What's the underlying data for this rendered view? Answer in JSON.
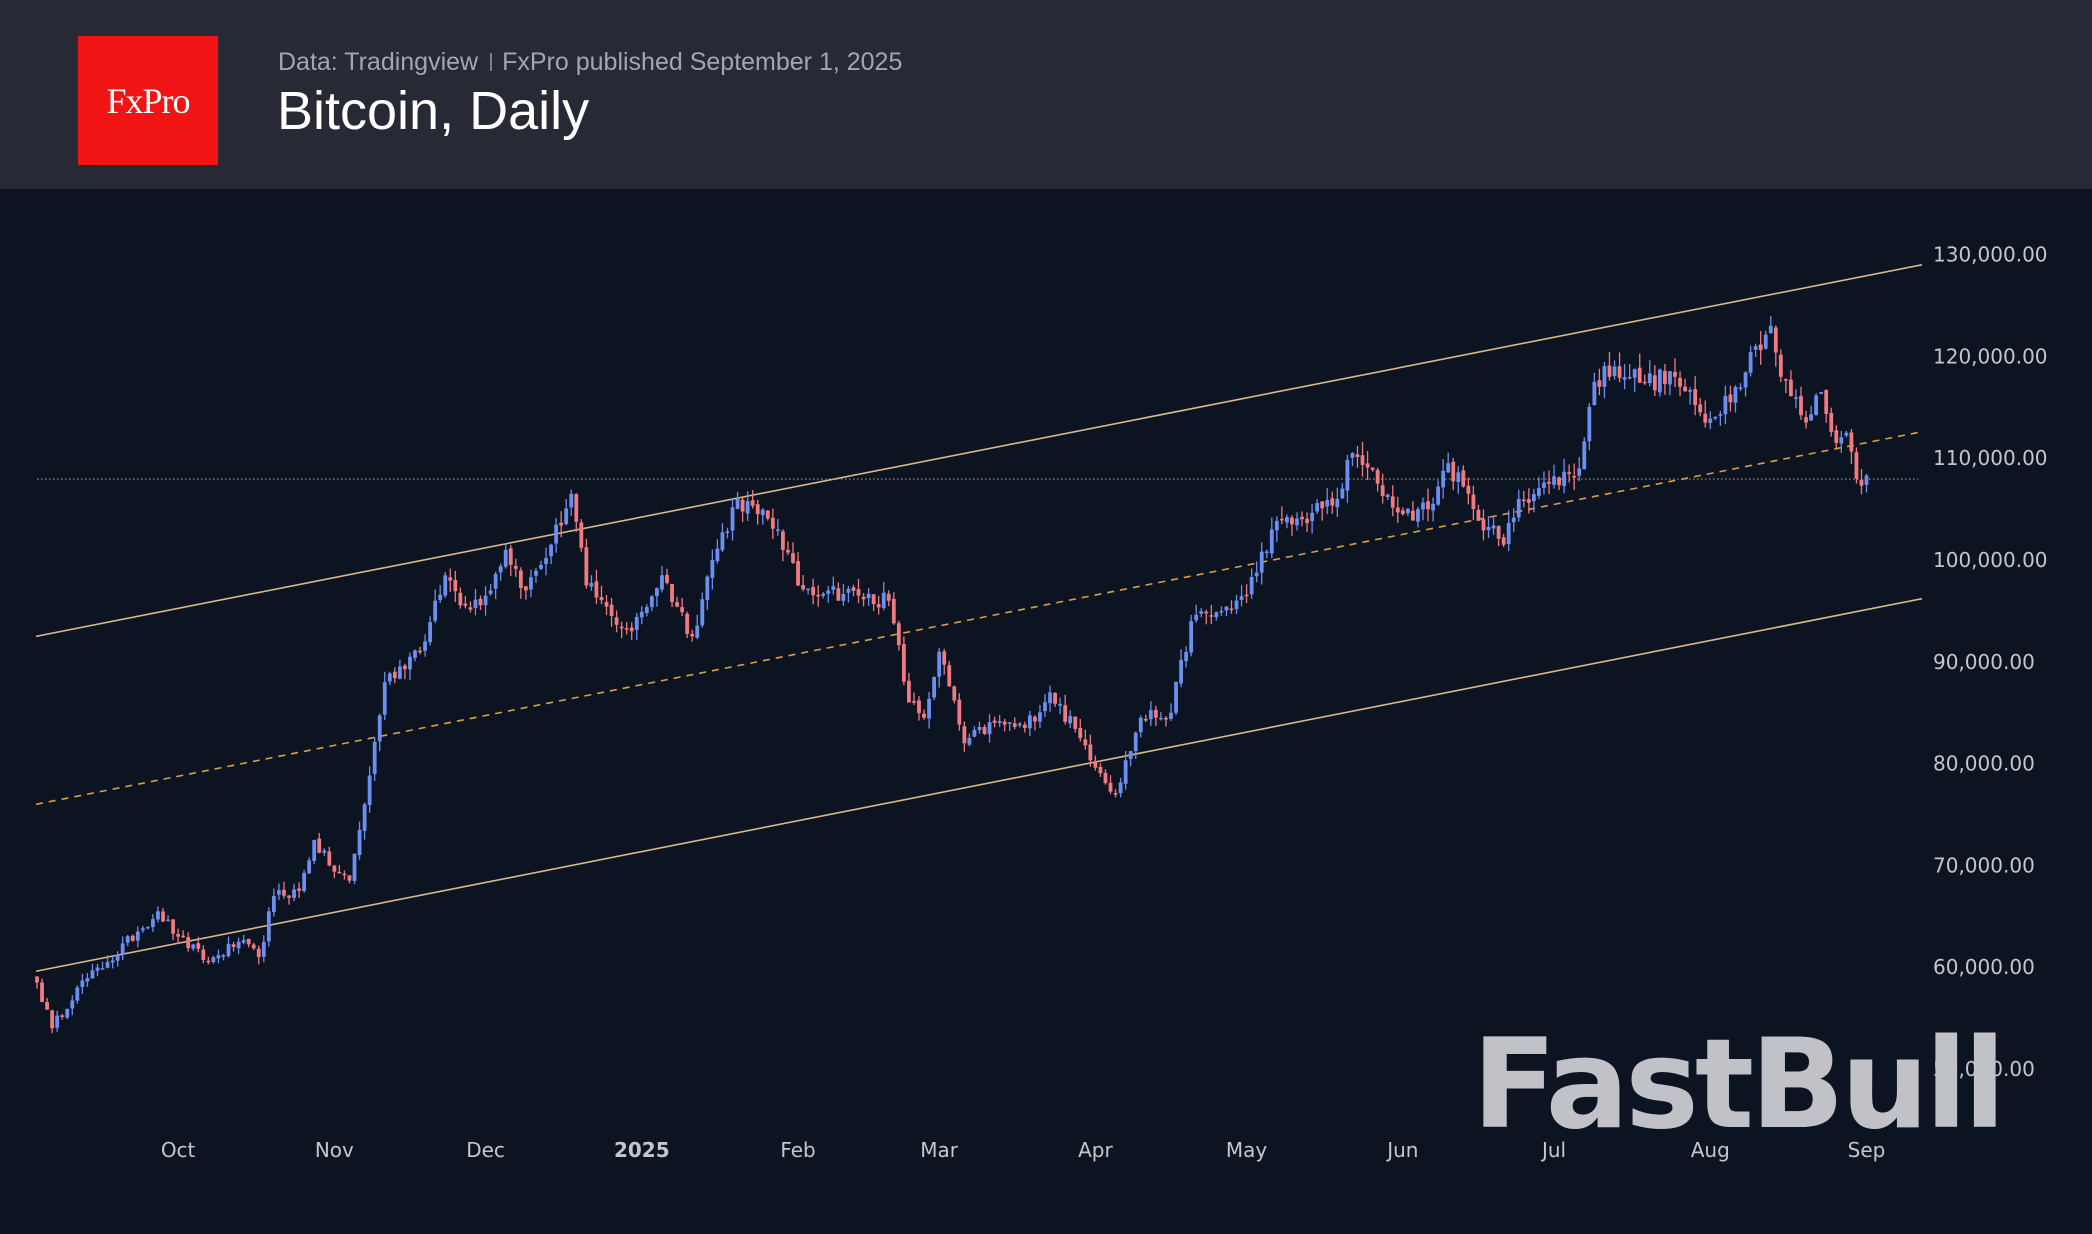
{
  "header": {
    "logo_text": "FxPro",
    "source": "Data: Tradingview",
    "published": "FxPro published September 1, 2025",
    "title": "Bitcoin, Daily"
  },
  "watermark": "FastBull",
  "colors": {
    "header_bg": "#272a35",
    "chart_bg": "#0d1421",
    "logo_red": "#f01414",
    "up_candle": "#6b8ff0",
    "down_candle": "#f07a80",
    "channel_line": "#d9b98a",
    "mid_line": "#d9a040",
    "price_line": "#c9848a"
  },
  "chart_data": {
    "type": "candlestick",
    "title": "Bitcoin, Daily",
    "xlabel": "",
    "ylabel": "",
    "ylim": [
      45000,
      134000
    ],
    "grid": false,
    "y_ticks": [
      130000,
      120000,
      110000,
      100000,
      90000,
      80000,
      70000,
      60000,
      50000
    ],
    "y_tick_labels": [
      "130,000.00",
      "120,000.00",
      "110,000.00",
      "100,000.00",
      "90,000.00",
      "80,000.00",
      "70,000.00",
      "60,000.00",
      "50,000.00"
    ],
    "x_ticks": [
      {
        "label": "Oct",
        "day": 28,
        "bold": false
      },
      {
        "label": "Nov",
        "day": 59,
        "bold": false
      },
      {
        "label": "Dec",
        "day": 89,
        "bold": false
      },
      {
        "label": "2025",
        "day": 120,
        "bold": true
      },
      {
        "label": "Feb",
        "day": 151,
        "bold": false
      },
      {
        "label": "Mar",
        "day": 179,
        "bold": false
      },
      {
        "label": "Apr",
        "day": 210,
        "bold": false
      },
      {
        "label": "May",
        "day": 240,
        "bold": false
      },
      {
        "label": "Jun",
        "day": 271,
        "bold": false
      },
      {
        "label": "Jul",
        "day": 301,
        "bold": false
      },
      {
        "label": "Aug",
        "day": 332,
        "bold": false
      },
      {
        "label": "Sep",
        "day": 363,
        "bold": false
      }
    ],
    "date_range": [
      "2024-09-03",
      "2025-09-01"
    ],
    "close_waypoints": [
      {
        "day": 0,
        "close": 58500
      },
      {
        "day": 3,
        "close": 54000
      },
      {
        "day": 8,
        "close": 58000
      },
      {
        "day": 14,
        "close": 60500
      },
      {
        "day": 20,
        "close": 63500
      },
      {
        "day": 24,
        "close": 65500
      },
      {
        "day": 28,
        "close": 63000
      },
      {
        "day": 34,
        "close": 60500
      },
      {
        "day": 40,
        "close": 62500
      },
      {
        "day": 44,
        "close": 61000
      },
      {
        "day": 47,
        "close": 67000
      },
      {
        "day": 52,
        "close": 67500
      },
      {
        "day": 55,
        "close": 72500
      },
      {
        "day": 58,
        "close": 70000
      },
      {
        "day": 62,
        "close": 68500
      },
      {
        "day": 65,
        "close": 76000
      },
      {
        "day": 69,
        "close": 88000
      },
      {
        "day": 74,
        "close": 90500
      },
      {
        "day": 77,
        "close": 92000
      },
      {
        "day": 81,
        "close": 98500
      },
      {
        "day": 85,
        "close": 95500
      },
      {
        "day": 89,
        "close": 96500
      },
      {
        "day": 93,
        "close": 101000
      },
      {
        "day": 97,
        "close": 97000
      },
      {
        "day": 102,
        "close": 101500
      },
      {
        "day": 106,
        "close": 106500
      },
      {
        "day": 109,
        "close": 97500
      },
      {
        "day": 114,
        "close": 94500
      },
      {
        "day": 118,
        "close": 93000
      },
      {
        "day": 124,
        "close": 98500
      },
      {
        "day": 130,
        "close": 92500
      },
      {
        "day": 134,
        "close": 100000
      },
      {
        "day": 139,
        "close": 106000
      },
      {
        "day": 143,
        "close": 104500
      },
      {
        "day": 147,
        "close": 103000
      },
      {
        "day": 151,
        "close": 97500
      },
      {
        "day": 157,
        "close": 97000
      },
      {
        "day": 163,
        "close": 96500
      },
      {
        "day": 169,
        "close": 96000
      },
      {
        "day": 173,
        "close": 86000
      },
      {
        "day": 176,
        "close": 84500
      },
      {
        "day": 179,
        "close": 91000
      },
      {
        "day": 184,
        "close": 82000
      },
      {
        "day": 190,
        "close": 84000
      },
      {
        "day": 196,
        "close": 83500
      },
      {
        "day": 201,
        "close": 87000
      },
      {
        "day": 207,
        "close": 82500
      },
      {
        "day": 214,
        "close": 77000
      },
      {
        "day": 219,
        "close": 84500
      },
      {
        "day": 225,
        "close": 85000
      },
      {
        "day": 229,
        "close": 94000
      },
      {
        "day": 235,
        "close": 95000
      },
      {
        "day": 240,
        "close": 96500
      },
      {
        "day": 245,
        "close": 103000
      },
      {
        "day": 251,
        "close": 104000
      },
      {
        "day": 258,
        "close": 106000
      },
      {
        "day": 261,
        "close": 110500
      },
      {
        "day": 266,
        "close": 107500
      },
      {
        "day": 271,
        "close": 104500
      },
      {
        "day": 276,
        "close": 105000
      },
      {
        "day": 280,
        "close": 109500
      },
      {
        "day": 285,
        "close": 105000
      },
      {
        "day": 291,
        "close": 101500
      },
      {
        "day": 294,
        "close": 106000
      },
      {
        "day": 300,
        "close": 107500
      },
      {
        "day": 306,
        "close": 109000
      },
      {
        "day": 309,
        "close": 117500
      },
      {
        "day": 313,
        "close": 119000
      },
      {
        "day": 319,
        "close": 117500
      },
      {
        "day": 325,
        "close": 118000
      },
      {
        "day": 331,
        "close": 113500
      },
      {
        "day": 337,
        "close": 117000
      },
      {
        "day": 341,
        "close": 121000
      },
      {
        "day": 344,
        "close": 123000
      },
      {
        "day": 346,
        "close": 118000
      },
      {
        "day": 351,
        "close": 113500
      },
      {
        "day": 354,
        "close": 116500
      },
      {
        "day": 357,
        "close": 111500
      },
      {
        "day": 359,
        "close": 112500
      },
      {
        "day": 361,
        "close": 108000
      },
      {
        "day": 363,
        "close": 108300
      }
    ],
    "channel": {
      "upper": {
        "start": {
          "day": 0,
          "price": 92500
        },
        "end": {
          "day": 374,
          "price": 129000
        }
      },
      "middle_dashed": {
        "start": {
          "day": 0,
          "price": 76000
        },
        "end": {
          "day": 374,
          "price": 112600
        }
      },
      "lower": {
        "start": {
          "day": 0,
          "price": 59600
        },
        "end": {
          "day": 374,
          "price": 96200
        }
      }
    },
    "current_price_line": 107950
  }
}
